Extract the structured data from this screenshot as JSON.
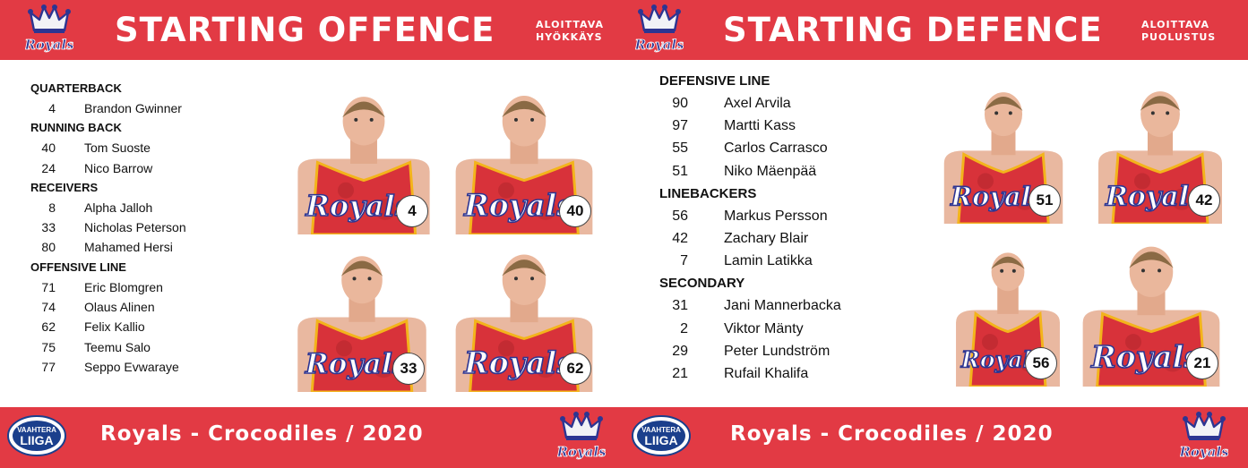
{
  "colors": {
    "brand_red": "#e23a44",
    "jersey_red": "#d8323a",
    "jersey_dark": "#b5262d",
    "trim_gold": "#f3b41b",
    "text_dark": "#111111",
    "wordmark_blue": "#2d3592"
  },
  "offence": {
    "title": "STARTING OFFENCE",
    "subtitle_line1": "ALOITTAVA",
    "subtitle_line2": "HYÖKKÄYS",
    "groups": [
      {
        "position": "QUARTERBACK",
        "players": [
          {
            "number": "4",
            "name": "Brandon Gwinner"
          }
        ]
      },
      {
        "position": "RUNNING BACK",
        "players": [
          {
            "number": "40",
            "name": "Tom Suoste"
          },
          {
            "number": "24",
            "name": "Nico Barrow"
          }
        ]
      },
      {
        "position": "RECEIVERS",
        "players": [
          {
            "number": "8",
            "name": "Alpha Jalloh"
          },
          {
            "number": "33",
            "name": "Nicholas Peterson"
          },
          {
            "number": "80",
            "name": "Mahamed Hersi"
          }
        ]
      },
      {
        "position": "OFFENSIVE LINE",
        "players": [
          {
            "number": "71",
            "name": "Eric Blomgren"
          },
          {
            "number": "74",
            "name": "Olaus Alinen"
          },
          {
            "number": "62",
            "name": "Felix Kallio"
          },
          {
            "number": "75",
            "name": "Teemu Salo"
          },
          {
            "number": "77",
            "name": "Seppo Evwaraye"
          }
        ]
      }
    ],
    "photos": [
      {
        "number": "4"
      },
      {
        "number": "40"
      },
      {
        "number": "33"
      },
      {
        "number": "62"
      }
    ]
  },
  "defence": {
    "title": "STARTING DEFENCE",
    "subtitle_line1": "ALOITTAVA",
    "subtitle_line2": "PUOLUSTUS",
    "groups": [
      {
        "position": "DEFENSIVE LINE",
        "players": [
          {
            "number": "90",
            "name": "Axel Arvila"
          },
          {
            "number": "97",
            "name": "Martti Kass"
          },
          {
            "number": "55",
            "name": "Carlos Carrasco"
          },
          {
            "number": "51",
            "name": "Niko Mäenpää"
          }
        ]
      },
      {
        "position": "LINEBACKERS",
        "players": [
          {
            "number": "56",
            "name": "Markus Persson"
          },
          {
            "number": "42",
            "name": "Zachary Blair"
          },
          {
            "number": "7",
            "name": "Lamin Latikka"
          }
        ]
      },
      {
        "position": "SECONDARY",
        "players": [
          {
            "number": "31",
            "name": "Jani Mannerbacka"
          },
          {
            "number": "2",
            "name": "Viktor Mänty"
          },
          {
            "number": "29",
            "name": "Peter Lundström"
          },
          {
            "number": "21",
            "name": "Rufail Khalifa"
          }
        ]
      }
    ],
    "photos": [
      {
        "number": "51"
      },
      {
        "number": "42"
      },
      {
        "number": "56"
      },
      {
        "number": "21"
      }
    ]
  },
  "footer": {
    "matchup": "Royals - Crocodiles  / 2020"
  },
  "logos": {
    "team_wordmark": "Royals",
    "league_line1": "VAAHTERA",
    "league_line2": "LIIGA"
  },
  "icons": {
    "team_crest": "crown-crest-icon",
    "league_logo": "vaahteraliiga-logo"
  }
}
